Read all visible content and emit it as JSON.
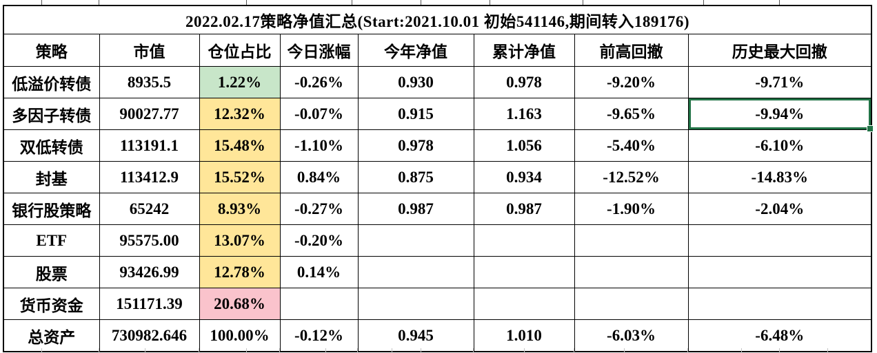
{
  "title": "2022.02.17策略净值汇总(Start:2021.10.01 初始541146,期间转入189176)",
  "table": {
    "headers": [
      "策略",
      "市值",
      "仓位占比",
      "今日涨幅",
      "今年净值",
      "累计净值",
      "前高回撤",
      "历史最大回撤"
    ],
    "rows": [
      {
        "cells": [
          "低溢价转债",
          "8935.5",
          "1.22%",
          "-0.26%",
          "0.930",
          "0.978",
          "-9.20%",
          "-9.71%"
        ],
        "position_fill": "green",
        "selected_col": -1
      },
      {
        "cells": [
          "多因子转债",
          "90027.77",
          "12.32%",
          "-0.07%",
          "0.915",
          "1.163",
          "-9.65%",
          "-9.94%"
        ],
        "position_fill": "yellow",
        "selected_col": 7
      },
      {
        "cells": [
          "双低转债",
          "113191.1",
          "15.48%",
          "-1.10%",
          "0.978",
          "1.056",
          "-5.40%",
          "-6.10%"
        ],
        "position_fill": "yellow",
        "selected_col": -1
      },
      {
        "cells": [
          "封基",
          "113412.9",
          "15.52%",
          "0.84%",
          "0.875",
          "0.934",
          "-12.52%",
          "-14.83%"
        ],
        "position_fill": "yellow",
        "selected_col": -1
      },
      {
        "cells": [
          "银行股策略",
          "65242",
          "8.93%",
          "-0.27%",
          "0.987",
          "0.987",
          "-1.90%",
          "-2.04%"
        ],
        "position_fill": "yellow",
        "selected_col": -1
      },
      {
        "cells": [
          "ETF",
          "95575.00",
          "13.07%",
          "-0.20%",
          "",
          "",
          "",
          ""
        ],
        "position_fill": "yellow",
        "selected_col": -1
      },
      {
        "cells": [
          "股票",
          "93426.99",
          "12.78%",
          "0.14%",
          "",
          "",
          "",
          ""
        ],
        "position_fill": "yellow",
        "selected_col": -1
      },
      {
        "cells": [
          "货币资金",
          "151171.39",
          "20.68%",
          "",
          "",
          "",
          "",
          ""
        ],
        "position_fill": "red",
        "selected_col": -1
      },
      {
        "cells": [
          "总资产",
          "730982.646",
          "100.00%",
          "-0.12%",
          "0.945",
          "1.010",
          "-6.03%",
          "-6.48%"
        ],
        "position_fill": "none",
        "selected_col": -1
      }
    ]
  },
  "colors": {
    "green_bg": "#c8e6c9",
    "green_text": "#217346",
    "yellow_bg": "#ffe699",
    "yellow_text": "#bf8f00",
    "red_bg": "#fac3cc",
    "red_text": "#c00000",
    "selection_green": "#217346",
    "border_black": "#000000"
  }
}
